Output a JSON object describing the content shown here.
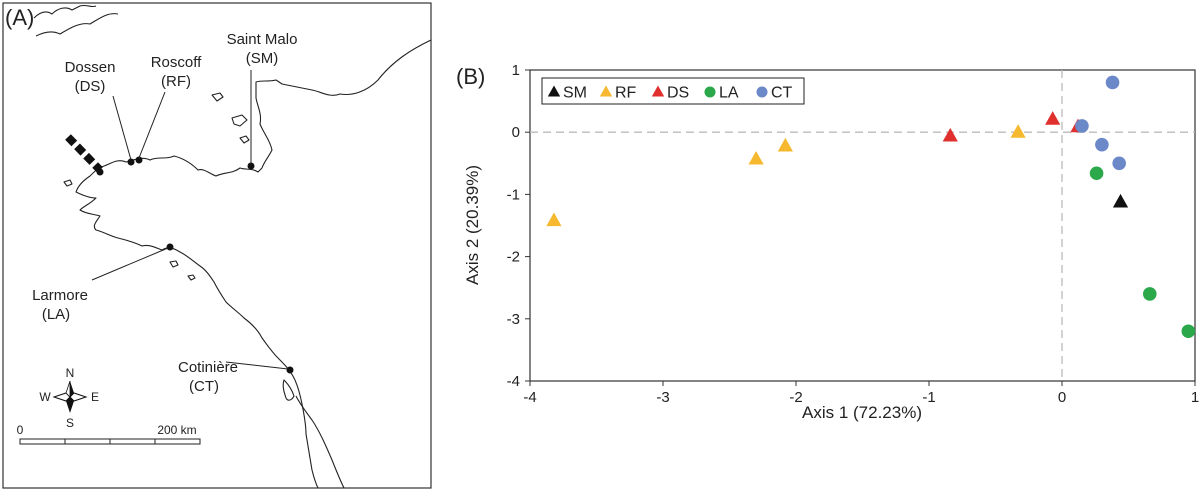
{
  "panel_a": {
    "label": "(A)",
    "sites": [
      {
        "name": "Dossen",
        "code": "(DS)"
      },
      {
        "name": "Roscoff",
        "code": "(RF)"
      },
      {
        "name": "Saint Malo",
        "code": "(SM)"
      },
      {
        "name": "Larmore",
        "code": "(LA)"
      },
      {
        "name": "Cotinière",
        "code": "(CT)"
      }
    ],
    "compass": {
      "n": "N",
      "s": "S",
      "e": "E",
      "w": "W"
    },
    "scale": {
      "start": "0",
      "end": "200 km"
    }
  },
  "chart_data": {
    "type": "scatter",
    "panel_label": "(B)",
    "xlabel": "Axis 1 (72.23%)",
    "ylabel": "Axis 2 (20.39%)",
    "xlim": [
      -4,
      1
    ],
    "ylim": [
      -4,
      1
    ],
    "xticks": [
      -4,
      -3,
      -2,
      -1,
      0,
      1
    ],
    "yticks": [
      -4,
      -3,
      -2,
      -1,
      0,
      1
    ],
    "grid": false,
    "reference_lines": {
      "x": 0,
      "y": 0,
      "style": "dashed",
      "color": "#bbbbbb"
    },
    "legend_position": "top-left",
    "series": [
      {
        "name": "SM",
        "marker": "triangle",
        "color": "#111111",
        "x": [
          0.44
        ],
        "y": [
          -1.12
        ]
      },
      {
        "name": "RF",
        "marker": "triangle",
        "color": "#f5b82e",
        "x": [
          -3.82,
          -2.3,
          -2.08,
          -0.33
        ],
        "y": [
          -1.42,
          -0.43,
          -0.22,
          0.0
        ]
      },
      {
        "name": "DS",
        "marker": "triangle",
        "color": "#e0302e",
        "x": [
          -0.84,
          -0.07,
          0.12
        ],
        "y": [
          -0.06,
          0.21,
          0.09
        ]
      },
      {
        "name": "LA",
        "marker": "circle",
        "color": "#2aa84a",
        "x": [
          0.26,
          0.66,
          0.95
        ],
        "y": [
          -0.66,
          -2.6,
          -3.2
        ]
      },
      {
        "name": "CT",
        "marker": "circle",
        "color": "#6b88c8",
        "x": [
          0.15,
          0.38,
          0.3,
          0.43
        ],
        "y": [
          0.1,
          0.8,
          -0.2,
          -0.5
        ]
      }
    ]
  }
}
